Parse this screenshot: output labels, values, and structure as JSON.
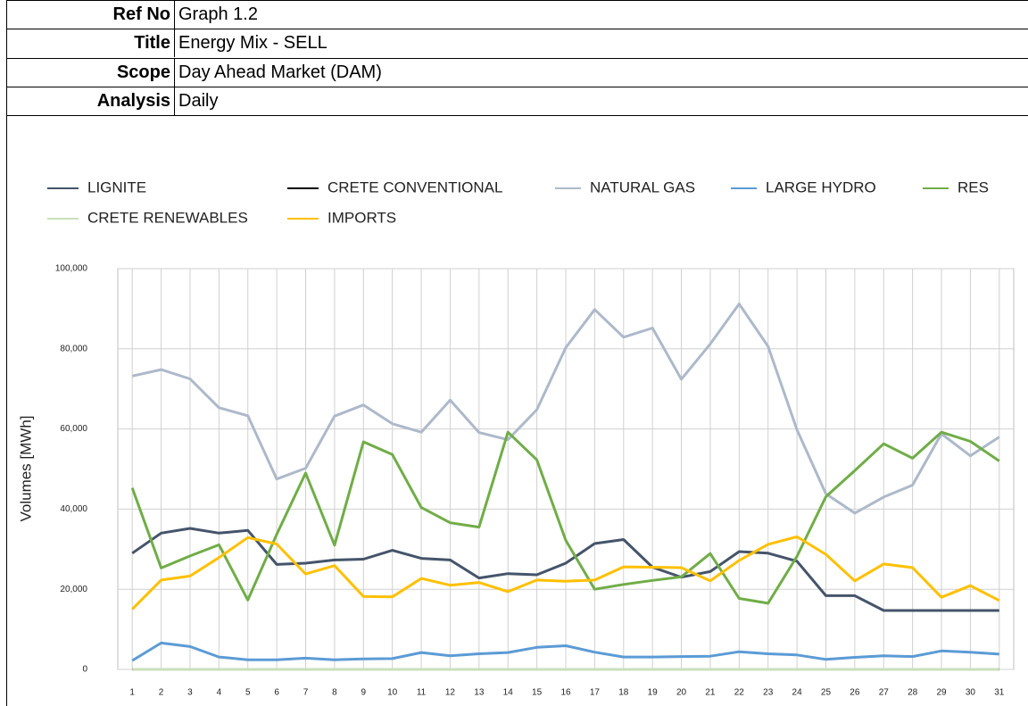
{
  "info": {
    "rows": [
      [
        "Ref No",
        "Graph 1.2"
      ],
      [
        "Title",
        "Energy Mix - SELL"
      ],
      [
        "Scope",
        "Day Ahead Market (DAM)"
      ],
      [
        "Analysis",
        "Daily"
      ]
    ]
  },
  "chart_data": {
    "type": "line",
    "y_label": "Volumes [MWh]",
    "categories": [
      "1",
      "2",
      "3",
      "4",
      "5",
      "6",
      "7",
      "8",
      "9",
      "10",
      "11",
      "12",
      "13",
      "14",
      "15",
      "16",
      "17",
      "18",
      "19",
      "20",
      "21",
      "22",
      "23",
      "24",
      "25",
      "26",
      "27",
      "28",
      "29",
      "30",
      "31"
    ],
    "ylim": [
      0,
      100000
    ],
    "yticks": [
      0,
      {
        "value": 20000,
        "label": "20,000"
      },
      {
        "value": 40000,
        "label": "40,000"
      },
      {
        "value": 60000,
        "label": "60,000"
      },
      {
        "value": 80000,
        "label": "80,000"
      },
      {
        "value": 100000,
        "label": "100,000"
      }
    ],
    "grid": true,
    "series": [
      {
        "name": "LIGNITE",
        "color": "#44546a",
        "values": [
          29000,
          34000,
          35200,
          34000,
          34700,
          26200,
          26500,
          27300,
          27500,
          29700,
          27700,
          27300,
          22800,
          23900,
          23600,
          26500,
          31400,
          32400,
          25500,
          23000,
          24400,
          29400,
          29000,
          27000,
          18400,
          18400,
          14700,
          14700,
          14700,
          14700,
          14700
        ]
      },
      {
        "name": "CRETE CONVENTIONAL",
        "color": "#000000",
        "values": [
          0,
          0,
          0,
          0,
          0,
          0,
          0,
          0,
          0,
          0,
          0,
          0,
          0,
          0,
          0,
          0,
          0,
          0,
          0,
          0,
          0,
          0,
          0,
          0,
          0,
          0,
          0,
          0,
          0,
          0,
          0
        ]
      },
      {
        "name": "NATURAL GAS",
        "color": "#adb9ca",
        "values": [
          73200,
          74800,
          72500,
          65300,
          63300,
          47500,
          50200,
          63200,
          66000,
          61300,
          59200,
          67200,
          59100,
          57300,
          64800,
          80300,
          89800,
          82900,
          85200,
          72400,
          81200,
          91200,
          80600,
          59800,
          43800,
          39000,
          43000,
          46000,
          58800,
          53300,
          58000
        ]
      },
      {
        "name": "LARGE HYDRO",
        "color": "#5b9bd5",
        "values": [
          2200,
          6600,
          5700,
          3100,
          2400,
          2400,
          2800,
          2400,
          2600,
          2700,
          4200,
          3400,
          3900,
          4200,
          5500,
          5900,
          4300,
          3100,
          3100,
          3200,
          3300,
          4400,
          3900,
          3600,
          2500,
          3000,
          3400,
          3200,
          4600,
          4300,
          3800
        ]
      },
      {
        "name": "RES",
        "color": "#70ad47",
        "values": [
          45300,
          25300,
          28300,
          31100,
          17300,
          33700,
          49000,
          31000,
          56800,
          53600,
          40400,
          36600,
          35500,
          59200,
          52300,
          32200,
          20000,
          21200,
          22200,
          23100,
          28900,
          17700,
          16500,
          28200,
          43100,
          49600,
          56300,
          52700,
          59200,
          56900,
          52000
        ]
      },
      {
        "name": "CRETE RENEWABLES",
        "color": "#c9dfbb",
        "values": [
          0,
          0,
          0,
          0,
          0,
          0,
          0,
          0,
          0,
          0,
          0,
          0,
          0,
          0,
          0,
          0,
          0,
          0,
          0,
          0,
          0,
          0,
          0,
          0,
          0,
          0,
          0,
          0,
          0,
          0,
          0
        ]
      },
      {
        "name": "IMPORTS",
        "color": "#ffc000",
        "values": [
          15000,
          22300,
          23300,
          27900,
          32900,
          31300,
          23800,
          25900,
          18200,
          18100,
          22700,
          21000,
          21700,
          19400,
          22300,
          22000,
          22300,
          25600,
          25500,
          25400,
          22100,
          27200,
          31200,
          33100,
          28700,
          22100,
          26300,
          25400,
          18000,
          20900,
          17200
        ]
      }
    ]
  }
}
